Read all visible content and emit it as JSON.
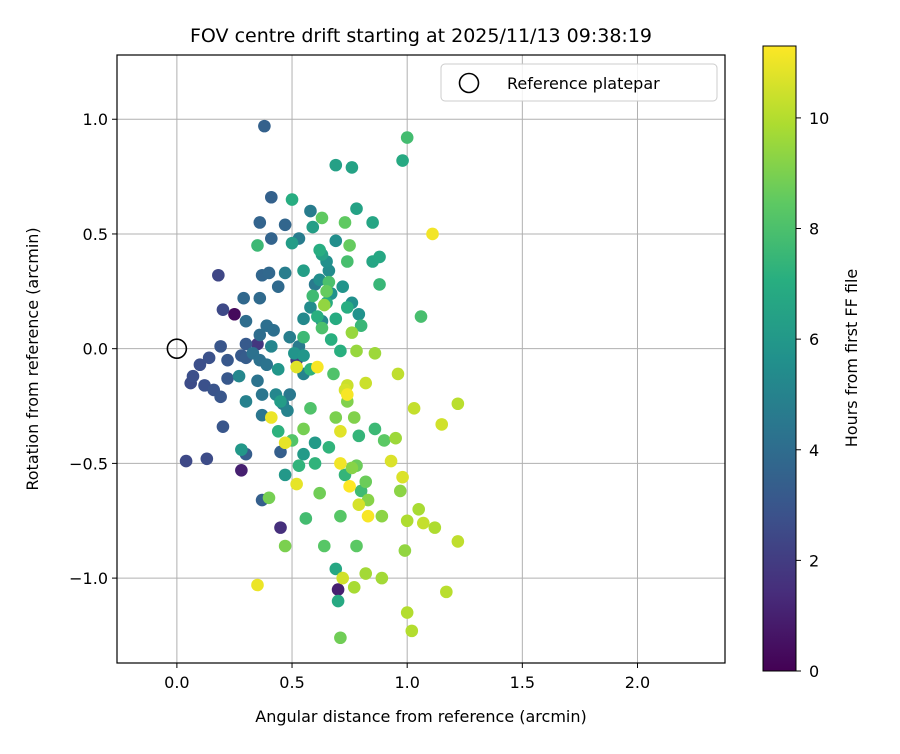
{
  "chart_data": {
    "type": "scatter",
    "title": "FOV centre drift starting at 2025/11/13 09:38:19",
    "xlabel": "Angular distance from reference (arcmin)",
    "ylabel": "Rotation from reference (arcmin)",
    "xlim": [
      -0.26,
      2.38
    ],
    "ylim": [
      -1.37,
      1.28
    ],
    "xticks": [
      0.0,
      0.5,
      1.0,
      1.5,
      2.0
    ],
    "xtick_labels": [
      "0.0",
      "0.5",
      "1.0",
      "1.5",
      "2.0"
    ],
    "yticks": [
      -1.0,
      -0.5,
      0.0,
      0.5,
      1.0
    ],
    "ytick_labels": [
      "−1.0",
      "−0.5",
      "0.0",
      "0.5",
      "1.0"
    ],
    "grid": true,
    "legend": {
      "position": "top-right",
      "label": "Reference platepar"
    },
    "reference_point": {
      "x": 0.0,
      "y": 0.0
    },
    "colorbar": {
      "label": "Hours from first FF file",
      "min": 0,
      "max": 11.3,
      "ticks": [
        0,
        2,
        4,
        6,
        8,
        10
      ],
      "tick_labels": [
        "0",
        "2",
        "4",
        "6",
        "8",
        "10"
      ],
      "colormap": "viridis"
    },
    "points": [
      [
        0.25,
        0.15,
        0.3
      ],
      [
        0.28,
        -0.53,
        1.0
      ],
      [
        0.7,
        -1.05,
        1.0
      ],
      [
        0.45,
        -0.78,
        1.5
      ],
      [
        0.35,
        0.02,
        1.8
      ],
      [
        0.52,
        -0.05,
        1.9
      ],
      [
        0.18,
        0.32,
        2.4
      ],
      [
        0.2,
        0.17,
        2.5
      ],
      [
        0.04,
        -0.49,
        2.5
      ],
      [
        0.13,
        -0.48,
        2.6
      ],
      [
        0.06,
        -0.15,
        2.6
      ],
      [
        0.07,
        -0.12,
        2.7
      ],
      [
        0.1,
        -0.07,
        2.7
      ],
      [
        0.14,
        -0.04,
        2.8
      ],
      [
        0.12,
        -0.16,
        2.8
      ],
      [
        0.16,
        -0.18,
        2.9
      ],
      [
        0.19,
        -0.21,
        3.0
      ],
      [
        0.2,
        -0.34,
        3.0
      ],
      [
        0.19,
        0.01,
        3.0
      ],
      [
        0.22,
        -0.13,
        3.1
      ],
      [
        0.22,
        -0.05,
        3.1
      ],
      [
        0.28,
        -0.03,
        3.2
      ],
      [
        0.3,
        0.02,
        3.2
      ],
      [
        0.3,
        -0.04,
        3.3
      ],
      [
        0.3,
        -0.46,
        3.3
      ],
      [
        0.37,
        -0.66,
        3.4
      ],
      [
        0.45,
        -0.45,
        3.4
      ],
      [
        0.38,
        0.97,
        3.5
      ],
      [
        0.41,
        0.66,
        3.5
      ],
      [
        0.36,
        0.55,
        3.6
      ],
      [
        0.41,
        0.48,
        3.6
      ],
      [
        0.47,
        0.54,
        3.7
      ],
      [
        0.37,
        0.32,
        3.7
      ],
      [
        0.4,
        0.33,
        3.8
      ],
      [
        0.29,
        0.22,
        3.8
      ],
      [
        0.36,
        0.22,
        3.9
      ],
      [
        0.44,
        0.27,
        3.9
      ],
      [
        0.3,
        0.12,
        4.0
      ],
      [
        0.36,
        0.06,
        4.0
      ],
      [
        0.39,
        0.1,
        4.1
      ],
      [
        0.42,
        0.08,
        4.1
      ],
      [
        0.33,
        -0.02,
        4.2
      ],
      [
        0.36,
        -0.05,
        4.2
      ],
      [
        0.39,
        -0.07,
        4.3
      ],
      [
        0.35,
        -0.14,
        4.3
      ],
      [
        0.37,
        -0.2,
        4.4
      ],
      [
        0.37,
        -0.29,
        4.4
      ],
      [
        0.46,
        -0.24,
        4.5
      ],
      [
        0.49,
        -0.2,
        4.5
      ],
      [
        0.53,
        0.01,
        4.6
      ],
      [
        0.6,
        0.28,
        4.6
      ],
      [
        0.58,
        0.6,
        4.7
      ],
      [
        0.53,
        0.48,
        4.7
      ],
      [
        0.47,
        0.33,
        4.8
      ],
      [
        0.49,
        0.05,
        4.8
      ],
      [
        0.3,
        -0.23,
        4.9
      ],
      [
        0.48,
        -0.27,
        5.0
      ],
      [
        0.55,
        -0.11,
        5.0
      ],
      [
        0.41,
        0.01,
        5.1
      ],
      [
        0.27,
        -0.12,
        5.2
      ],
      [
        0.43,
        -0.2,
        5.2
      ],
      [
        0.55,
        0.13,
        5.3
      ],
      [
        0.63,
        0.12,
        5.3
      ],
      [
        0.58,
        0.18,
        5.4
      ],
      [
        0.66,
        0.34,
        5.4
      ],
      [
        0.62,
        0.3,
        5.5
      ],
      [
        0.69,
        0.47,
        5.5
      ],
      [
        0.65,
        0.38,
        5.6
      ],
      [
        0.76,
        0.2,
        5.6
      ],
      [
        0.79,
        0.15,
        5.7
      ],
      [
        0.67,
        0.24,
        5.7
      ],
      [
        0.72,
        0.27,
        5.8
      ],
      [
        0.51,
        -0.02,
        5.8
      ],
      [
        0.44,
        -0.09,
        5.9
      ],
      [
        0.55,
        -0.03,
        5.9
      ],
      [
        0.28,
        -0.44,
        6.0
      ],
      [
        0.47,
        -0.55,
        6.0
      ],
      [
        0.55,
        -0.46,
        6.1
      ],
      [
        0.6,
        -0.41,
        6.1
      ],
      [
        0.45,
        -0.23,
        6.2
      ],
      [
        0.5,
        0.46,
        6.2
      ],
      [
        0.55,
        0.34,
        6.3
      ],
      [
        0.59,
        0.53,
        6.3
      ],
      [
        0.63,
        0.41,
        6.4
      ],
      [
        0.69,
        0.8,
        6.4
      ],
      [
        0.76,
        0.79,
        6.5
      ],
      [
        0.78,
        0.61,
        6.5
      ],
      [
        0.85,
        0.55,
        6.6
      ],
      [
        0.85,
        0.38,
        6.6
      ],
      [
        0.88,
        0.4,
        6.7
      ],
      [
        0.69,
        -0.96,
        6.7
      ],
      [
        0.7,
        -1.1,
        6.8
      ],
      [
        0.98,
        0.82,
        6.8
      ],
      [
        0.65,
        0.2,
        6.9
      ],
      [
        0.69,
        0.13,
        6.9
      ],
      [
        0.74,
        0.18,
        7.0
      ],
      [
        0.5,
        0.65,
        7.0
      ],
      [
        0.62,
        0.43,
        7.0
      ],
      [
        0.61,
        0.14,
        7.1
      ],
      [
        0.67,
        0.04,
        7.1
      ],
      [
        0.71,
        -0.01,
        7.1
      ],
      [
        0.58,
        -0.09,
        7.2
      ],
      [
        0.44,
        -0.36,
        7.2
      ],
      [
        0.53,
        -0.51,
        7.3
      ],
      [
        0.6,
        -0.5,
        7.3
      ],
      [
        0.66,
        -0.43,
        7.3
      ],
      [
        0.73,
        -0.55,
        7.4
      ],
      [
        0.79,
        -0.38,
        7.4
      ],
      [
        0.88,
        0.28,
        7.5
      ],
      [
        0.8,
        0.1,
        7.5
      ],
      [
        0.86,
        -0.35,
        7.6
      ],
      [
        0.55,
        0.05,
        7.6
      ],
      [
        0.35,
        0.45,
        7.6
      ],
      [
        0.59,
        0.23,
        7.7
      ],
      [
        0.8,
        -0.62,
        7.7
      ],
      [
        0.56,
        -0.74,
        7.8
      ],
      [
        1.0,
        0.92,
        7.8
      ],
      [
        1.06,
        0.14,
        7.9
      ],
      [
        0.74,
        0.38,
        7.9
      ],
      [
        0.66,
        0.29,
        8.0
      ],
      [
        0.63,
        0.09,
        8.0
      ],
      [
        0.68,
        -0.11,
        8.1
      ],
      [
        0.58,
        -0.26,
        8.1
      ],
      [
        0.5,
        -0.4,
        8.2
      ],
      [
        0.71,
        -0.73,
        8.3
      ],
      [
        0.64,
        -0.86,
        8.3
      ],
      [
        0.9,
        -0.4,
        8.4
      ],
      [
        0.78,
        -0.86,
        8.4
      ],
      [
        0.73,
        0.55,
        8.5
      ],
      [
        0.63,
        0.57,
        8.5
      ],
      [
        0.65,
        0.25,
        8.6
      ],
      [
        0.75,
        0.45,
        8.6
      ],
      [
        0.78,
        -0.51,
        8.7
      ],
      [
        0.82,
        -0.58,
        8.7
      ],
      [
        0.71,
        -1.26,
        8.8
      ],
      [
        0.62,
        -0.63,
        8.8
      ],
      [
        0.55,
        -0.35,
        8.9
      ],
      [
        0.4,
        -0.65,
        8.9
      ],
      [
        0.47,
        -0.86,
        9.0
      ],
      [
        0.69,
        -0.3,
        9.0
      ],
      [
        0.74,
        -0.23,
        9.1
      ],
      [
        0.77,
        -0.3,
        9.1
      ],
      [
        0.76,
        -0.52,
        9.2
      ],
      [
        0.83,
        -0.66,
        9.2
      ],
      [
        0.89,
        -0.73,
        9.3
      ],
      [
        0.97,
        -0.62,
        9.3
      ],
      [
        0.99,
        -0.88,
        9.4
      ],
      [
        0.64,
        0.19,
        9.4
      ],
      [
        0.78,
        -0.01,
        9.5
      ],
      [
        0.76,
        0.07,
        9.5
      ],
      [
        0.86,
        -0.02,
        9.6
      ],
      [
        0.95,
        -0.39,
        9.6
      ],
      [
        0.82,
        -0.98,
        9.7
      ],
      [
        0.89,
        -1.0,
        9.7
      ],
      [
        0.77,
        -1.04,
        9.8
      ],
      [
        1.05,
        -0.7,
        9.8
      ],
      [
        1.12,
        -0.78,
        9.9
      ],
      [
        1.0,
        -0.75,
        9.9
      ],
      [
        1.02,
        -1.23,
        10.0
      ],
      [
        1.0,
        -1.15,
        10.0
      ],
      [
        1.17,
        -1.06,
        10.1
      ],
      [
        1.22,
        -0.24,
        10.1
      ],
      [
        1.22,
        -0.84,
        10.2
      ],
      [
        0.96,
        -0.11,
        10.2
      ],
      [
        1.03,
        -0.26,
        10.3
      ],
      [
        1.07,
        -0.76,
        10.3
      ],
      [
        0.74,
        -0.16,
        10.4
      ],
      [
        0.82,
        -0.15,
        10.4
      ],
      [
        1.15,
        -0.33,
        10.5
      ],
      [
        0.72,
        -1.0,
        10.5
      ],
      [
        0.79,
        -0.68,
        10.6
      ],
      [
        0.73,
        -0.18,
        10.6
      ],
      [
        0.93,
        -0.49,
        10.7
      ],
      [
        0.98,
        -0.56,
        10.7
      ],
      [
        0.71,
        -0.36,
        10.8
      ],
      [
        0.52,
        -0.08,
        10.8
      ],
      [
        0.52,
        -0.59,
        10.9
      ],
      [
        0.47,
        -0.41,
        10.9
      ],
      [
        0.35,
        -1.03,
        11.0
      ],
      [
        0.41,
        -0.3,
        11.0
      ],
      [
        0.71,
        -0.5,
        11.1
      ],
      [
        1.11,
        0.5,
        11.1
      ],
      [
        0.74,
        -0.2,
        11.2
      ],
      [
        0.83,
        -0.73,
        11.2
      ],
      [
        0.61,
        -0.08,
        11.2
      ],
      [
        0.75,
        -0.6,
        11.3
      ]
    ]
  }
}
